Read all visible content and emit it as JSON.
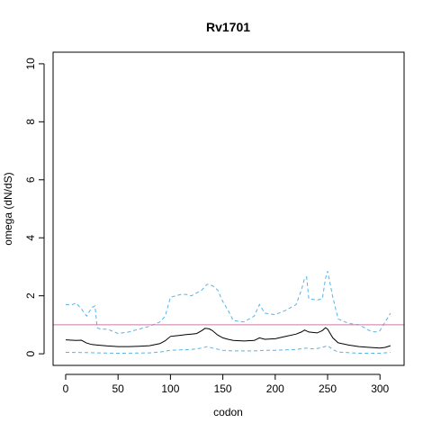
{
  "chart_data": {
    "type": "line",
    "title": "Rv1701",
    "xlabel": "codon",
    "ylabel": "omega (dN/dS)",
    "xlim": [
      -12,
      323
    ],
    "ylim": [
      -0.4,
      10.4
    ],
    "xticks": [
      0,
      50,
      100,
      150,
      200,
      250,
      300
    ],
    "yticks": [
      0,
      2,
      4,
      6,
      8,
      10
    ],
    "grid": false,
    "reference_line": {
      "y": 1,
      "color": "#cc79a7"
    },
    "series": [
      {
        "role": "estimate",
        "color": "#000000",
        "dash": "solid",
        "x": [
          0,
          10,
          15,
          20,
          25,
          30,
          40,
          50,
          60,
          70,
          80,
          90,
          95,
          100,
          105,
          110,
          115,
          120,
          125,
          130,
          133,
          137,
          140,
          145,
          150,
          155,
          160,
          170,
          180,
          185,
          190,
          200,
          210,
          220,
          225,
          228,
          232,
          240,
          245,
          248,
          250,
          255,
          260,
          270,
          280,
          290,
          300,
          305,
          310
        ],
        "y": [
          0.48,
          0.46,
          0.47,
          0.37,
          0.32,
          0.3,
          0.27,
          0.25,
          0.25,
          0.26,
          0.28,
          0.35,
          0.45,
          0.6,
          0.62,
          0.64,
          0.66,
          0.68,
          0.7,
          0.8,
          0.88,
          0.86,
          0.8,
          0.65,
          0.55,
          0.5,
          0.46,
          0.44,
          0.46,
          0.55,
          0.5,
          0.52,
          0.6,
          0.68,
          0.75,
          0.82,
          0.75,
          0.72,
          0.8,
          0.9,
          0.85,
          0.55,
          0.38,
          0.3,
          0.25,
          0.22,
          0.2,
          0.22,
          0.28
        ]
      },
      {
        "role": "upper",
        "color": "#56b4e9",
        "dash": "dashed",
        "x": [
          0,
          5,
          10,
          15,
          20,
          25,
          28,
          30,
          33,
          40,
          50,
          60,
          70,
          80,
          90,
          95,
          100,
          105,
          110,
          115,
          120,
          125,
          130,
          135,
          140,
          145,
          150,
          155,
          160,
          170,
          180,
          185,
          190,
          200,
          210,
          220,
          225,
          228,
          230,
          232,
          240,
          245,
          248,
          250,
          252,
          255,
          260,
          270,
          280,
          290,
          295,
          300,
          305,
          310
        ],
        "y": [
          1.7,
          1.68,
          1.75,
          1.55,
          1.3,
          1.6,
          1.65,
          0.9,
          0.85,
          0.85,
          0.7,
          0.75,
          0.85,
          0.95,
          1.1,
          1.3,
          1.95,
          2.0,
          2.05,
          2.05,
          2.0,
          2.1,
          2.2,
          2.4,
          2.35,
          2.2,
          1.8,
          1.5,
          1.15,
          1.1,
          1.3,
          1.7,
          1.4,
          1.35,
          1.5,
          1.7,
          2.2,
          2.6,
          2.65,
          1.9,
          1.85,
          1.9,
          2.6,
          2.85,
          2.5,
          1.95,
          1.2,
          1.05,
          1.0,
          0.8,
          0.75,
          0.8,
          1.1,
          1.4
        ]
      },
      {
        "role": "lower",
        "color": "#56b4e9",
        "dash": "dashed",
        "x": [
          0,
          20,
          30,
          50,
          80,
          90,
          100,
          120,
          130,
          135,
          140,
          150,
          160,
          180,
          190,
          200,
          220,
          230,
          235,
          240,
          245,
          250,
          255,
          260,
          280,
          300,
          310
        ],
        "y": [
          0.05,
          0.04,
          0.03,
          0.02,
          0.03,
          0.06,
          0.12,
          0.15,
          0.2,
          0.25,
          0.2,
          0.12,
          0.1,
          0.1,
          0.12,
          0.12,
          0.15,
          0.2,
          0.17,
          0.18,
          0.22,
          0.28,
          0.15,
          0.06,
          0.02,
          0.02,
          0.05
        ]
      }
    ]
  }
}
